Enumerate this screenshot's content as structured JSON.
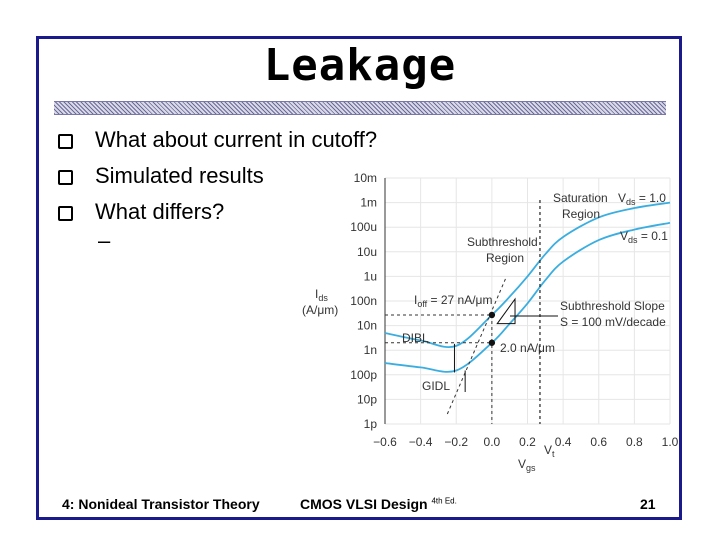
{
  "slide": {
    "title": "Leakage",
    "bullets": [
      "What about current in cutoff?",
      "Simulated results",
      "What differs?"
    ],
    "sub_bullet": "–",
    "footer_left": "4: Nonideal Transistor Theory",
    "footer_mid": "CMOS VLSI Design",
    "footer_mid_sup": "4th Ed.",
    "page_number": "21",
    "accent_color": "#1a1a8c"
  },
  "chart_data": {
    "type": "line",
    "y_scale": "log",
    "xlim": [
      -0.6,
      1.0
    ],
    "ylim": [
      "1p",
      "10m"
    ],
    "x_ticks": [
      "−0.6",
      "−0.4",
      "−0.2",
      "0.0",
      "0.2",
      "0.4",
      "0.6",
      "0.8",
      "1.0"
    ],
    "y_ticks": [
      "10m",
      "1m",
      "100u",
      "10u",
      "1u",
      "100n",
      "10n",
      "1n",
      "100p",
      "10p",
      "1p"
    ],
    "ylabel_main": "I",
    "ylabel_sub": "ds",
    "ylabel_unit": "(A/μm)",
    "xlabel_main": "V",
    "xlabel_sub": "gs",
    "vt_main": "V",
    "vt_sub": "t",
    "series": [
      {
        "name_main": "V",
        "name_sub": "ds",
        "name_value": " = 1.0",
        "color": "#3aaee0",
        "x": [
          -0.6,
          -0.4,
          -0.2,
          0.0,
          0.1,
          0.2,
          0.3,
          0.4,
          0.6,
          0.8,
          1.0
        ],
        "y": [
          5e-09,
          2.5e-09,
          1.5e-09,
          2.7e-08,
          1.5e-07,
          1e-06,
          8e-06,
          4e-05,
          0.00025,
          0.0006,
          0.001
        ]
      },
      {
        "name_main": "V",
        "name_sub": "ds",
        "name_value": " = 0.1",
        "color": "#3aaee0",
        "x": [
          -0.6,
          -0.4,
          -0.2,
          0.0,
          0.1,
          0.2,
          0.3,
          0.4,
          0.6,
          0.8,
          1.0
        ],
        "y": [
          3e-10,
          2e-10,
          1.5e-10,
          2e-09,
          1.2e-08,
          8e-08,
          7e-07,
          4e-06,
          3e-05,
          8e-05,
          0.00015
        ]
      }
    ],
    "annotations": {
      "saturation": "Saturation",
      "region": "Region",
      "subthreshold": "Subthreshold",
      "subthreshold_region": "Region",
      "ioff_main": "I",
      "ioff_sub": "off",
      "ioff_value": " = 27 nA/μm",
      "dibl": "DIBL",
      "gidl": "GIDL",
      "second_point": "2.0 nA/μm",
      "slope_title": "Subthreshold Slope",
      "slope_value": "S = 100 mV/decade"
    }
  }
}
